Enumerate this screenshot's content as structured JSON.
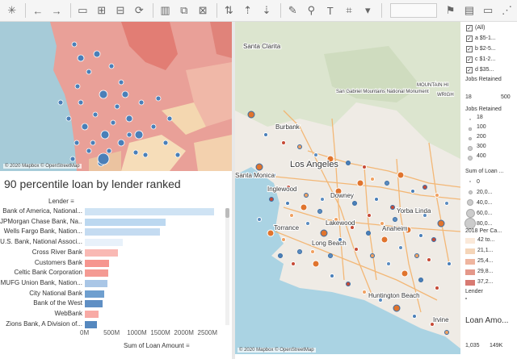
{
  "toolbar": {
    "icons": [
      "logo-icon",
      "undo-icon",
      "redo-icon",
      "save-icon",
      "new-datasource-icon",
      "pause-icon",
      "refresh-icon",
      "chart-icon",
      "duplicate-icon",
      "clear-icon",
      "swap-icon",
      "sort-asc-icon",
      "sort-desc-icon",
      "highlight-icon",
      "group-icon",
      "label-icon",
      "format-icon",
      "fit-icon",
      "pin-icon",
      "showme-icon",
      "presentation-icon",
      "share-icon"
    ]
  },
  "map_left": {
    "attribution": "© 2020 Mapbox © OpenStreetMap"
  },
  "map_right": {
    "attribution": "© 2020 Mapbox © OpenStreetMap",
    "places": [
      {
        "name": "Santa Clarita",
        "t": "Santa Clarita"
      },
      {
        "name": "San Gabriel Mountains National Monument",
        "t": "San Gabriel Mountains National Monument"
      },
      {
        "name": "Burbank",
        "t": "Burbank"
      },
      {
        "name": "Los Angeles",
        "t": "Los Angeles"
      },
      {
        "name": "Santa Monica",
        "t": "Santa Monica"
      },
      {
        "name": "Inglewood",
        "t": "Inglewood"
      },
      {
        "name": "Downey",
        "t": "Downey"
      },
      {
        "name": "Yorba Linda",
        "t": "Yorba Linda"
      },
      {
        "name": "Lakewood",
        "t": "Lakewood"
      },
      {
        "name": "Anaheim",
        "t": "Anaheim"
      },
      {
        "name": "Torrance",
        "t": "Torrance"
      },
      {
        "name": "Long Beach",
        "t": "Long Beach"
      },
      {
        "name": "Huntington Beach",
        "t": "Huntington Beach"
      },
      {
        "name": "Irvine",
        "t": "Irvine"
      },
      {
        "name": "Mountain High",
        "t": "MOUNTAIN HI"
      },
      {
        "name": "Wright",
        "t": "WRIGH"
      }
    ]
  },
  "chart": {
    "title": "90 percentile loan by lender ranked",
    "row_header": "Lender",
    "axis_title": "Sum of Loan Amount",
    "axis_ticks": [
      "0M",
      "500M",
      "1000M",
      "1500M",
      "2000M",
      "2500M"
    ]
  },
  "chart_data": {
    "type": "bar",
    "title": "90 percentile loan by lender ranked",
    "xlabel": "Sum of Loan Amount",
    "ylabel": "Lender",
    "xlim": [
      0,
      2800
    ],
    "categories": [
      "Bank of America, National...",
      "JPMorgan Chase Bank, Na...",
      "Wells Fargo Bank, Nation...",
      "U.S. Bank, National Associ...",
      "Cross River Bank",
      "Customers Bank",
      "Celtic Bank Corporation",
      "MUFG Union Bank, Nation...",
      "City National Bank",
      "Bank of the West",
      "WebBank",
      "Zions Bank, A Division of..."
    ],
    "values": [
      2740,
      1720,
      1600,
      800,
      700,
      520,
      500,
      480,
      420,
      380,
      290,
      260
    ],
    "colors": [
      "#cfe3f4",
      "#bcd8f0",
      "#c4dbf1",
      "#e8f1fa",
      "#f9b9b4",
      "#f6958f",
      "#f49a93",
      "#a9c6e6",
      "#6f9fcf",
      "#5f8fc4",
      "#f8aaa5",
      "#5588bf"
    ]
  },
  "legend": {
    "filter_items": [
      "(All)",
      "a $5-1...",
      "b $2-5...",
      "c $1-2...",
      "d $35..."
    ],
    "jobs_retained_title": "Jobs Retained",
    "jobs_range_min": "18",
    "jobs_range_max": "500",
    "jobs_size_title": "Jobs Retained",
    "jobs_sizes": [
      "18",
      "100",
      "200",
      "300",
      "400"
    ],
    "loan_size_title": "Sum of Loan ...",
    "loan_sizes": [
      "0",
      "20,0...",
      "40,0...",
      "60,0...",
      "80,0..."
    ],
    "capita_title": "2018 Per Ca...",
    "capita_items": [
      {
        "label": "42 to...",
        "color": "#fbe9d9"
      },
      {
        "label": "21,1...",
        "color": "#f5d5b8"
      },
      {
        "label": "25,4...",
        "color": "#efb59f"
      },
      {
        "label": "29,8...",
        "color": "#e4988a"
      },
      {
        "label": "37,2...",
        "color": "#d87a72"
      }
    ],
    "lender_title": "Lender",
    "loan_amt_title": "Loan Amo...",
    "loan_amt_min": "1,035",
    "loan_amt_max": "149K"
  }
}
